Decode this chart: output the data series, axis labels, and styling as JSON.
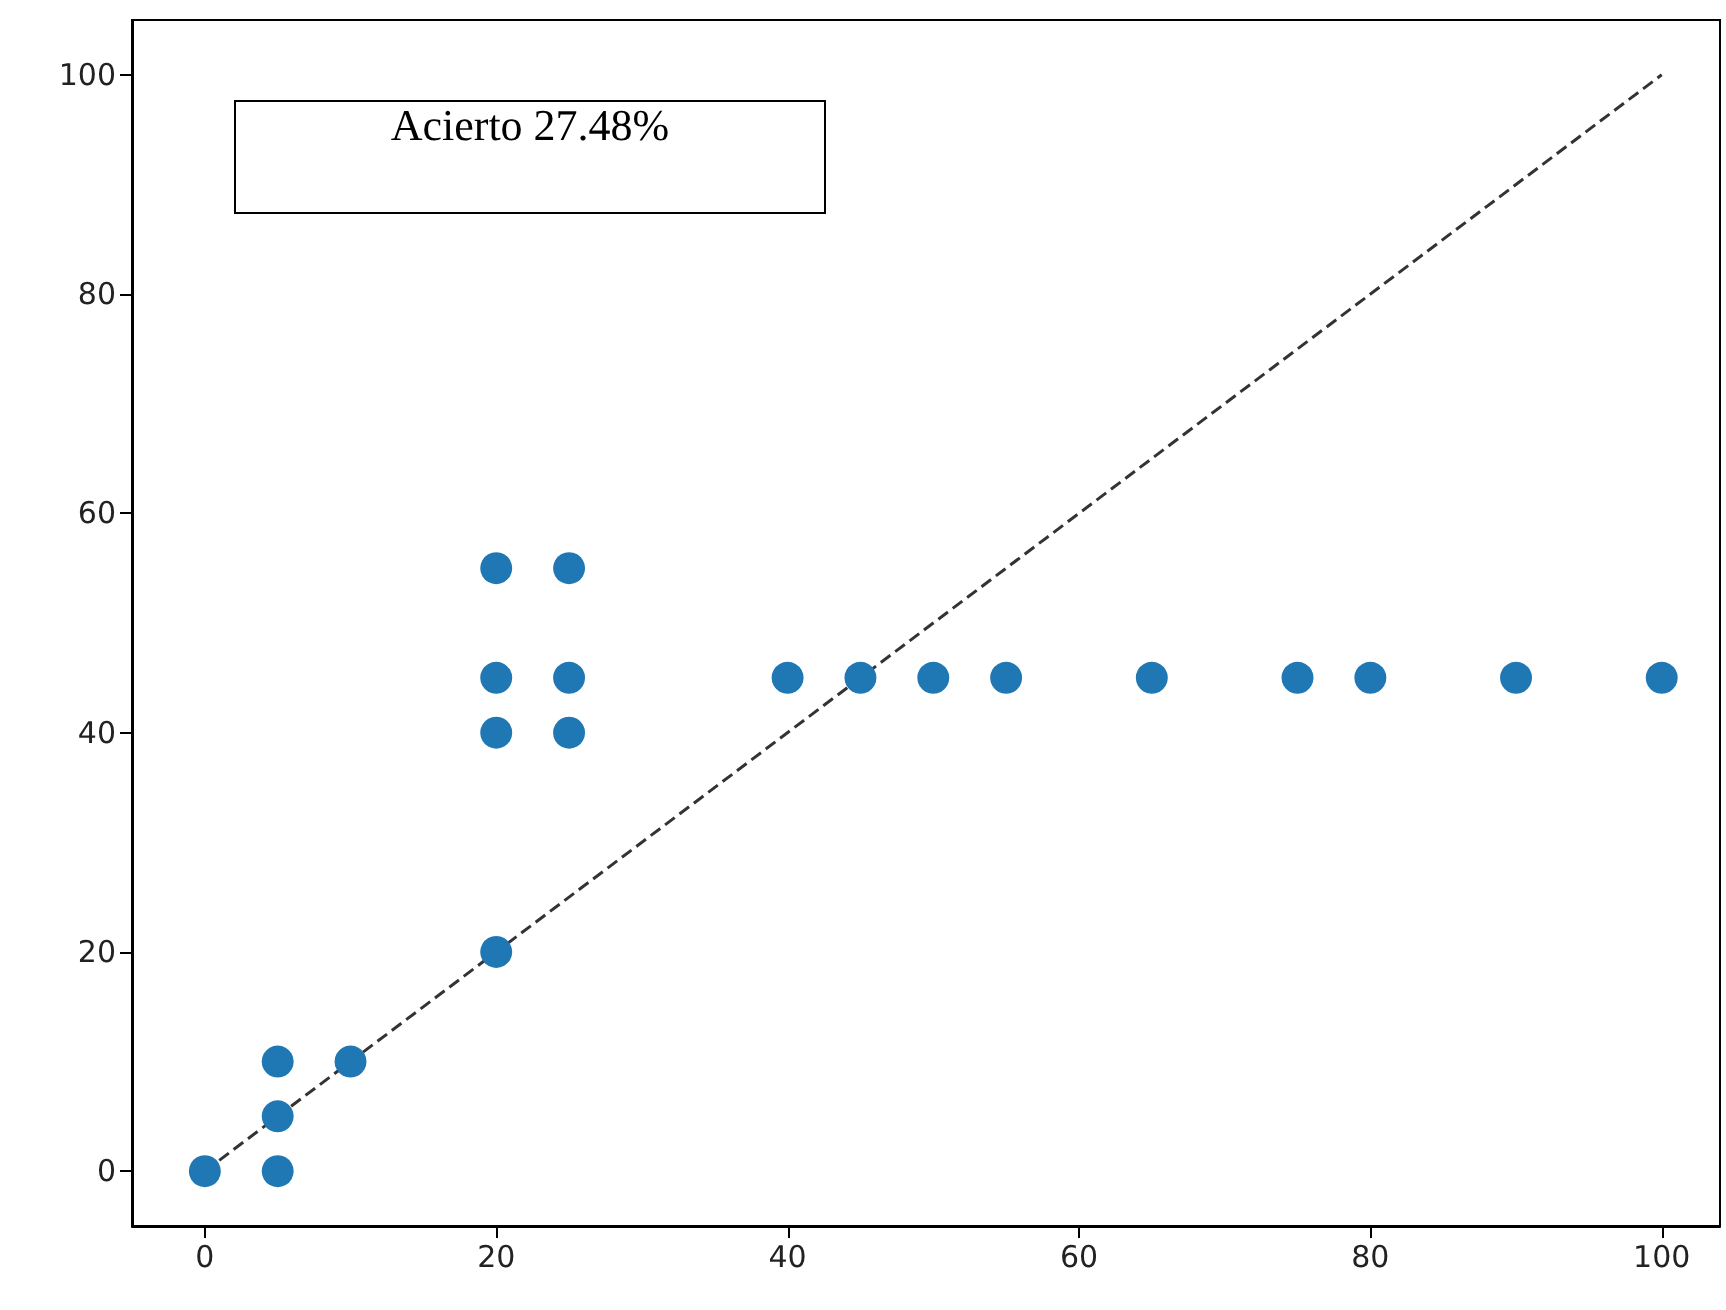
{
  "chart_data": {
    "type": "scatter",
    "series": [
      {
        "color": "#1f77b4",
        "x": [
          0,
          5,
          5,
          5,
          10,
          20,
          20,
          20,
          20,
          25,
          25,
          25,
          40,
          45,
          50,
          55,
          65,
          75,
          80,
          90,
          100
        ],
        "values": [
          0,
          0,
          5,
          10,
          10,
          20,
          40,
          45,
          55,
          40,
          45,
          55,
          45,
          45,
          45,
          45,
          45,
          45,
          45,
          45,
          45
        ]
      },
      {
        "type": "line",
        "color": "#333333",
        "line_style": "dashed",
        "marker": "none",
        "x": [
          0,
          100
        ],
        "values": [
          0,
          100
        ]
      }
    ],
    "marker": "circle",
    "xlim": [
      -5,
      104
    ],
    "ylim": [
      -5,
      105
    ],
    "xticks": [
      0,
      20,
      40,
      60,
      80,
      100
    ],
    "yticks": [
      0,
      20,
      40,
      60,
      80,
      100
    ],
    "grid": false,
    "annotations": [
      "Acierto 27.48%"
    ]
  }
}
